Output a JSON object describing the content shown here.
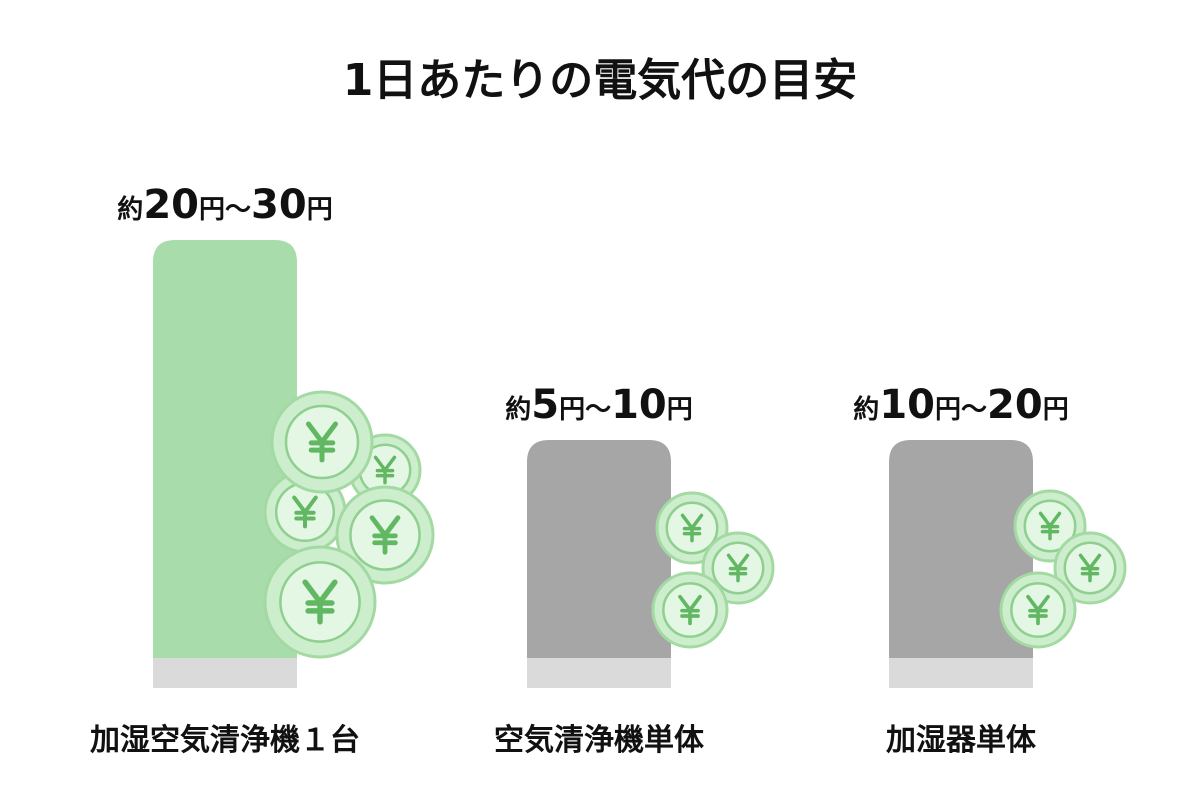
{
  "title": "1日あたりの電気代の目安",
  "items": [
    {
      "label": "加湿空気清浄機１台",
      "price": [
        "約",
        "20",
        "円",
        "〜",
        "30",
        "円"
      ]
    },
    {
      "label": "空気清浄機単体",
      "price": [
        "約",
        "5",
        "円",
        "〜",
        "10",
        "円"
      ]
    },
    {
      "label": "加湿器単体",
      "price": [
        "約",
        "10",
        "円",
        "〜",
        "20",
        "円"
      ]
    }
  ]
}
